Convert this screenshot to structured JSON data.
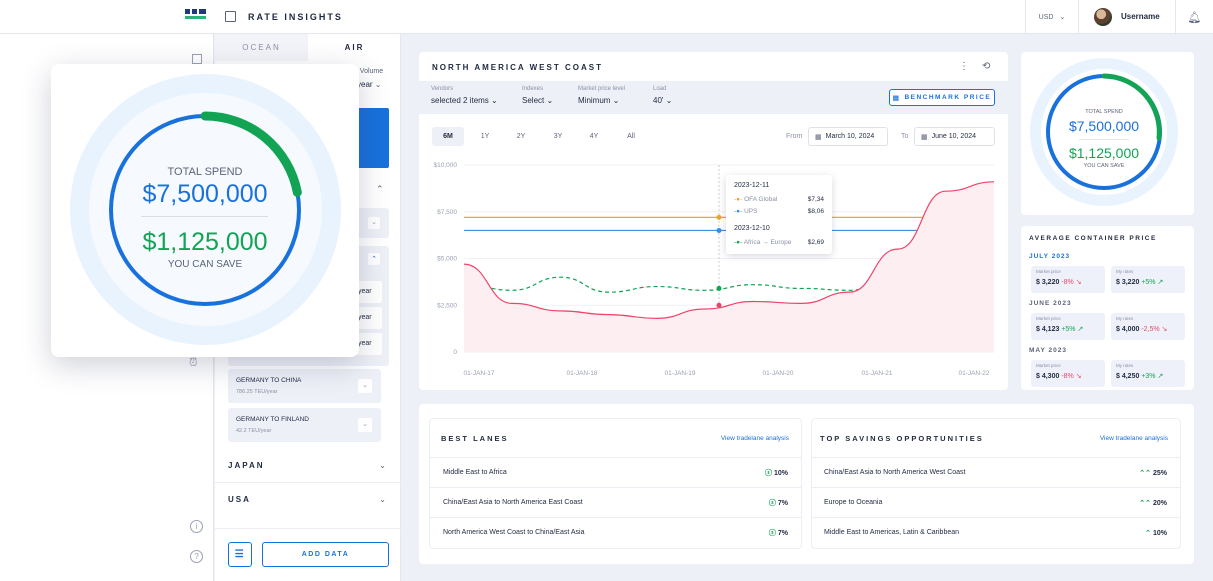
{
  "app": {
    "title": "RATE INSIGHTS",
    "currency": "USD",
    "username": "Username"
  },
  "tabs": {
    "ocean": "OCEAN",
    "air": "AIR"
  },
  "sidebar": {
    "volume_label": "n. Volume",
    "volume_value": "year",
    "year_labels": [
      "year",
      "year",
      "year"
    ],
    "lanes": [
      {
        "name": "GERMANY TO CHINA",
        "sub": "786.25 TEU/year"
      },
      {
        "name": "GERMANY TO FINLAND",
        "sub": "42.2 TEU/year"
      }
    ],
    "countries": [
      "JAPAN",
      "USA"
    ],
    "add_data": "ADD DATA"
  },
  "chart_card": {
    "title": "NORTH AMERICA WEST COAST",
    "filters": [
      {
        "label": "Vendors",
        "value": "selected 2 items"
      },
      {
        "label": "Indexes",
        "value": "Select"
      },
      {
        "label": "Market price level",
        "value": "Minimum"
      },
      {
        "label": "Load",
        "value": "40'"
      }
    ],
    "benchmark_button": "BENCHMARK PRICE",
    "ranges": [
      "6M",
      "1Y",
      "2Y",
      "3Y",
      "4Y",
      "All"
    ],
    "from_label": "From",
    "from_date": "March 10, 2024",
    "to_label": "To",
    "to_date": "June 10, 2024",
    "tooltip": {
      "date1": "2023-12-11",
      "r1_name": "OFA Global",
      "r1_val": "$7,34",
      "r2_name": "UPS",
      "r2_val": "$8,06",
      "date2": "2023-12-10",
      "r3_name": "Africa → Europe",
      "r3_val": "$2,69"
    }
  },
  "chart_data": {
    "type": "line",
    "title": "NORTH AMERICA WEST COAST",
    "y_ticks": [
      "$10,000",
      "$7,500",
      "$5,000",
      "$2,500",
      "0"
    ],
    "ylim": [
      0,
      10000
    ],
    "x_ticks": [
      "01-JAN-17",
      "01-JAN-18",
      "01-JAN-19",
      "01-JAN-20",
      "01-JAN-21",
      "01-JAN-22"
    ],
    "series": [
      {
        "name": "OFA Global",
        "color": "#f5a623",
        "values": [
          7200,
          7200,
          7200,
          7200,
          7200,
          7200,
          7200,
          7200,
          7200,
          7200,
          7200,
          7200
        ]
      },
      {
        "name": "UPS",
        "color": "#3a8ee6",
        "values": [
          6500,
          6500,
          6500,
          6500,
          6500,
          6500,
          6500,
          6500,
          6500,
          6500,
          6500,
          6500
        ]
      },
      {
        "name": "Africa → Europe",
        "color": "#12a454",
        "values": [
          3600,
          3300,
          4000,
          3200,
          3500,
          3300,
          3600,
          3400,
          3300,
          4000,
          3600,
          3000
        ]
      },
      {
        "name": "Market",
        "color": "#f0436a",
        "values": [
          4700,
          2600,
          2200,
          2000,
          1800,
          2300,
          2700,
          2600,
          3200,
          5500,
          8600,
          9100
        ]
      }
    ]
  },
  "spend_big": {
    "label": "TOTAL SPEND",
    "value": "$7,500,000",
    "savings": "$1,125,000",
    "savings_label": "YOU CAN SAVE",
    "progress": 0.22
  },
  "spend_small": {
    "label": "TOTAL SPEND",
    "value": "$7,500,000",
    "savings": "$1,125,000",
    "savings_label": "YOU CAN SAVE"
  },
  "avg_price": {
    "title": "AVERAGE CONTAINER PRICE",
    "months": [
      {
        "name": "JULY 2023",
        "market": "$ 3,220",
        "market_pct": "-8%",
        "mine": "$ 3,220",
        "mine_pct": "+5%"
      },
      {
        "name": "JUNE 2023",
        "market": "$ 4,123",
        "market_pct": "+5%",
        "mine": "$ 4,000",
        "mine_pct": "-2,5%"
      },
      {
        "name": "MAY 2023",
        "market": "$ 4,300",
        "market_pct": "-8%",
        "mine": "$ 4,250",
        "mine_pct": "+3%"
      }
    ],
    "market_label": "Market price",
    "mine_label": "My rates"
  },
  "best_lanes": {
    "title": "BEST LANES",
    "link": "View tradelane analysis",
    "rows": [
      {
        "name": "Middle East to Africa",
        "pct": "10%"
      },
      {
        "name": "China/East Asia to North America East Coast",
        "pct": "7%"
      },
      {
        "name": "North America West Coast to China/East Asia",
        "pct": "7%"
      }
    ]
  },
  "top_savings": {
    "title": "TOP SAVINGS OPPORTUNITIES",
    "link": "View tradelane analysis",
    "rows": [
      {
        "name": "China/East Asia to North America West Coast",
        "pct": "25%"
      },
      {
        "name": "Europe to Oceania",
        "pct": "20%"
      },
      {
        "name": "Middle East to Americas, Latin & Caribbean",
        "pct": "10%"
      }
    ]
  }
}
